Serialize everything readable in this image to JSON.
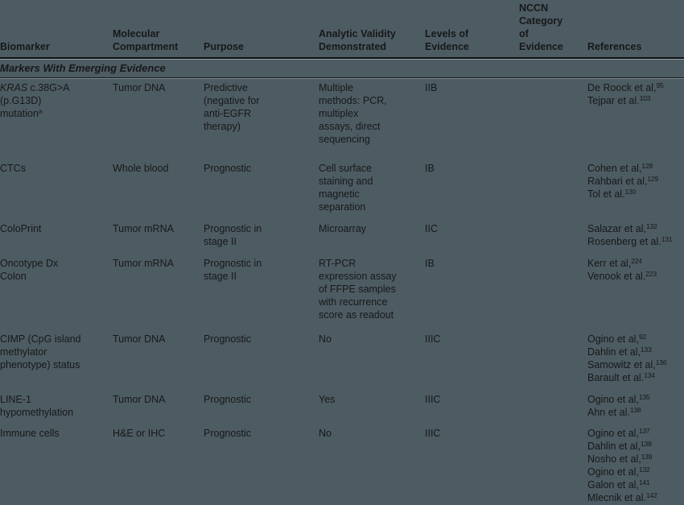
{
  "colors": {
    "background": "#4d5c62",
    "text": "#17181b",
    "rule_dark": "#0f1013",
    "rule_light": "#cfd8da"
  },
  "table": {
    "columns": [
      {
        "label": "Biomarker"
      },
      {
        "label": "Molecular\nCompartment"
      },
      {
        "label": "Purpose"
      },
      {
        "label": "Analytic Validity\nDemonstrated"
      },
      {
        "label": "Levels of\nEvidence"
      },
      {
        "label": "NCCN\nCategory\nof\nEvidence"
      },
      {
        "label": "References"
      }
    ],
    "section_title": "Markers With Emerging Evidence",
    "rows": [
      {
        "biomarker_segments": [
          {
            "t": "KRAS",
            "i": 1
          },
          {
            "t": " c.38G>A\n(p.G13D)\nmutation"
          },
          {
            "t": "a",
            "s": 1
          }
        ],
        "compartment": "Tumor DNA",
        "purpose": "Predictive\n(negative for\nanti-EGFR\ntherapy)",
        "analytic_validity": "Multiple\nmethods: PCR,\nmultiplex\nassays, direct\nsequencing",
        "level_of_evidence": "IIB",
        "nccn_category": "",
        "references": [
          {
            "text": "De Roock et al,",
            "sup": "95"
          },
          {
            "text": "Tejpar et al.",
            "sup": "103"
          }
        ]
      },
      {
        "biomarker_segments": [
          {
            "t": "CTCs"
          }
        ],
        "compartment": "Whole blood",
        "purpose": "Prognostic",
        "analytic_validity": "Cell surface\nstaining and\nmagnetic\nseparation",
        "level_of_evidence": "IB",
        "nccn_category": "",
        "references": [
          {
            "text": "Cohen et al,",
            "sup": "128"
          },
          {
            "text": "Rahbari et al,",
            "sup": "129"
          },
          {
            "text": "Tol et al.",
            "sup": "130"
          }
        ]
      },
      {
        "biomarker_segments": [
          {
            "t": "ColoPrint"
          }
        ],
        "compartment": "Tumor mRNA",
        "purpose": "Prognostic in\nstage II",
        "analytic_validity": "Microarray",
        "level_of_evidence": "IIC",
        "nccn_category": "",
        "references": [
          {
            "text": "Salazar et al,",
            "sup": "132"
          },
          {
            "text": "Rosenberg et al.",
            "sup": "131"
          }
        ]
      },
      {
        "biomarker_segments": [
          {
            "t": "Oncotype Dx\nColon"
          }
        ],
        "compartment": "Tumor mRNA",
        "purpose": "Prognostic in\nstage II",
        "analytic_validity": "RT-PCR\nexpression assay\nof FFPE samples\nwith recurrence\nscore as readout",
        "level_of_evidence": "IB",
        "nccn_category": "",
        "references": [
          {
            "text": "Kerr et al,",
            "sup": "224"
          },
          {
            "text": "Venook et al.",
            "sup": "223"
          }
        ]
      },
      {
        "biomarker_segments": [
          {
            "t": "CIMP (CpG island\nmethylator\nphenotype) status"
          }
        ],
        "compartment": "Tumor DNA",
        "purpose": "Prognostic",
        "analytic_validity": "No",
        "level_of_evidence": "IIIC",
        "nccn_category": "",
        "references": [
          {
            "text": "Ogino et al,",
            "sup": "92"
          },
          {
            "text": "Dahlin et al,",
            "sup": "133"
          },
          {
            "text": "Samowitz et al,",
            "sup": "136"
          },
          {
            "text": "Barault et al.",
            "sup": "134"
          }
        ]
      },
      {
        "biomarker_segments": [
          {
            "t": "LINE-1\nhypomethylation"
          }
        ],
        "compartment": "Tumor DNA",
        "purpose": "Prognostic",
        "analytic_validity": "Yes",
        "level_of_evidence": "IIIC",
        "nccn_category": "",
        "references": [
          {
            "text": "Ogino et al,",
            "sup": "135"
          },
          {
            "text": "Ahn et al.",
            "sup": "138"
          }
        ]
      },
      {
        "biomarker_segments": [
          {
            "t": "Immune cells"
          }
        ],
        "compartment": "H&E or IHC",
        "purpose": "Prognostic",
        "analytic_validity": "No",
        "level_of_evidence": "IIIC",
        "nccn_category": "",
        "references": [
          {
            "text": "Ogino et al,",
            "sup": "137"
          },
          {
            "text": "Dahlin et al,",
            "sup": "138"
          },
          {
            "text": "Nosho et al,",
            "sup": "139"
          },
          {
            "text": "Ogino et al,",
            "sup": "132"
          },
          {
            "text": "Galon et al,",
            "sup": "141"
          },
          {
            "text": "Mlecnik et al.",
            "sup": "142"
          }
        ]
      }
    ]
  }
}
